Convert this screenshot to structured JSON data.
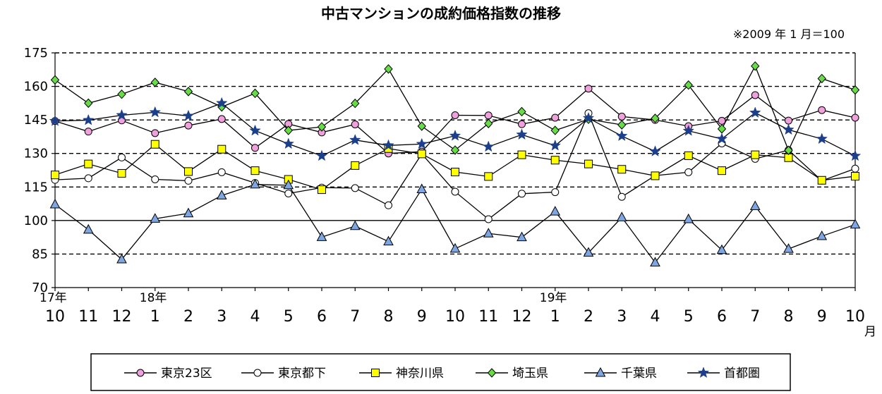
{
  "chart_data": {
    "type": "line",
    "title": "中古マンションの成約価格指数の推移",
    "note": "※2009 年 1 月＝100",
    "xlabel": "",
    "ylabel": "",
    "ylim": [
      70,
      175
    ],
    "yticks": [
      70,
      85,
      100,
      115,
      130,
      145,
      160,
      175
    ],
    "dashed_gridlines": [
      85,
      115,
      130,
      145,
      160,
      175
    ],
    "solid_gridlines": [
      100
    ],
    "categories": [
      "10",
      "11",
      "12",
      "1",
      "2",
      "3",
      "4",
      "5",
      "6",
      "7",
      "8",
      "9",
      "10",
      "11",
      "12",
      "1",
      "2",
      "3",
      "4",
      "5",
      "6",
      "7",
      "8",
      "9",
      "10"
    ],
    "year_labels": [
      {
        "index": 0,
        "text": "17年"
      },
      {
        "index": 3,
        "text": "18年"
      },
      {
        "index": 15,
        "text": "19年"
      }
    ],
    "month_unit": "月",
    "legend_position": "bottom",
    "series": [
      {
        "name": "東京23区",
        "marker": "circle",
        "color": "#f0a0dc",
        "values": [
          144.5,
          139.8,
          144.8,
          139.1,
          142.5,
          145.4,
          132.5,
          143.2,
          139.4,
          143.0,
          130.0,
          130.8,
          147.1,
          147.0,
          143.1,
          146.0,
          159.0,
          146.5,
          145.0,
          142.2,
          144.6,
          156.1,
          144.7,
          149.4,
          146.0
        ]
      },
      {
        "name": "東京都下",
        "marker": "open-circle",
        "color": "#ffffff",
        "values": [
          118.2,
          118.9,
          128.2,
          118.4,
          117.8,
          121.6,
          116.8,
          112.1,
          114.7,
          114.5,
          106.8,
          129.8,
          112.9,
          100.6,
          112.0,
          112.7,
          148.0,
          110.6,
          120.1,
          121.6,
          134.5,
          127.6,
          131.5,
          117.8,
          123.2
        ]
      },
      {
        "name": "神奈川県",
        "marker": "square",
        "color": "#ffff00",
        "values": [
          120.4,
          125.3,
          121.1,
          134.1,
          121.9,
          131.9,
          122.3,
          118.4,
          113.8,
          124.6,
          132.2,
          129.8,
          121.7,
          119.7,
          129.4,
          127.0,
          125.3,
          122.9,
          120.0,
          129.0,
          122.3,
          129.4,
          128.1,
          118.0,
          119.8
        ]
      },
      {
        "name": "埼玉県",
        "marker": "diamond",
        "color": "#66dd44",
        "values": [
          162.9,
          152.5,
          156.5,
          161.8,
          157.7,
          150.8,
          156.9,
          140.3,
          141.9,
          152.4,
          167.8,
          142.2,
          131.5,
          143.4,
          148.7,
          140.3,
          145.3,
          142.8,
          145.7,
          160.6,
          141.0,
          169.1,
          131.4,
          163.5,
          158.4
        ]
      },
      {
        "name": "千葉県",
        "marker": "triangle",
        "color": "#7ea6e0",
        "values": [
          107.2,
          95.9,
          82.6,
          100.8,
          103.2,
          111.2,
          116.1,
          115.8,
          92.6,
          97.5,
          90.6,
          114.0,
          87.4,
          94.2,
          92.5,
          104.0,
          85.6,
          101.4,
          81.2,
          100.6,
          86.8,
          106.4,
          87.3,
          93.0,
          98.2
        ]
      },
      {
        "name": "首都圏",
        "marker": "star",
        "color": "#1c3f8c",
        "values": [
          144.5,
          144.9,
          147.1,
          148.4,
          146.8,
          152.5,
          140.2,
          134.3,
          128.9,
          136.0,
          133.6,
          134.2,
          137.9,
          133.0,
          138.4,
          133.5,
          145.8,
          137.8,
          130.9,
          140.1,
          136.5,
          148.2,
          140.6,
          136.5,
          128.9
        ]
      }
    ]
  }
}
